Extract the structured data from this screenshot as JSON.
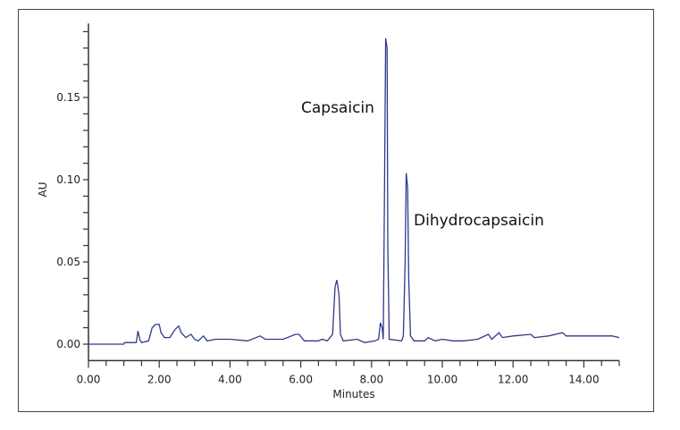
{
  "chart_data": {
    "type": "line",
    "title": "",
    "xlabel": "Minutes",
    "ylabel": "AU",
    "xlim": [
      0,
      15
    ],
    "ylim": [
      -0.01,
      0.195
    ],
    "x_ticks": [
      "0.00",
      "2.00",
      "4.00",
      "6.00",
      "8.00",
      "10.00",
      "12.00",
      "14.00"
    ],
    "y_ticks": [
      "0.00",
      "0.05",
      "0.10",
      "0.15"
    ],
    "grid": false,
    "line_color": "#2e3a8a",
    "annotations": [
      {
        "text": "Capsaicin",
        "x": 8.41,
        "y": 0.186
      },
      {
        "text": "Dihydrocapsaicin",
        "x": 8.99,
        "y": 0.104
      }
    ],
    "series": [
      {
        "x": [
          0,
          1.0,
          1.02,
          1.35,
          1.4,
          1.45,
          1.5,
          1.7,
          1.8,
          1.9,
          2.0,
          2.05,
          2.15,
          2.3,
          2.45,
          2.55,
          2.62,
          2.75,
          2.9,
          3.0,
          3.1,
          3.25,
          3.35,
          3.6,
          4.0,
          4.5,
          4.85,
          5.0,
          5.5,
          5.85,
          5.95,
          6.1,
          6.5,
          6.6,
          6.75,
          6.9,
          6.97,
          7.02,
          7.08,
          7.12,
          7.2,
          7.6,
          7.8,
          8.1,
          8.2,
          8.25,
          8.3,
          8.33,
          8.36,
          8.4,
          8.44,
          8.46,
          8.5,
          8.85,
          8.9,
          8.95,
          8.98,
          9.02,
          9.05,
          9.1,
          9.2,
          9.5,
          9.6,
          9.8,
          10.0,
          10.3,
          10.6,
          11.0,
          11.3,
          11.4,
          11.6,
          11.7,
          12.0,
          12.5,
          12.6,
          13.0,
          13.4,
          13.5,
          14.0,
          14.5,
          14.8,
          15.0
        ],
        "y": [
          0,
          0,
          0.001,
          0.001,
          0.008,
          0.003,
          0.001,
          0.002,
          0.01,
          0.012,
          0.012,
          0.007,
          0.004,
          0.004,
          0.009,
          0.011,
          0.007,
          0.004,
          0.006,
          0.003,
          0.002,
          0.005,
          0.002,
          0.003,
          0.003,
          0.002,
          0.005,
          0.003,
          0.003,
          0.006,
          0.006,
          0.002,
          0.002,
          0.003,
          0.002,
          0.006,
          0.035,
          0.039,
          0.03,
          0.006,
          0.002,
          0.003,
          0.001,
          0.002,
          0.003,
          0.013,
          0.01,
          0.003,
          0.08,
          0.186,
          0.18,
          0.06,
          0.003,
          0.002,
          0.005,
          0.05,
          0.104,
          0.095,
          0.04,
          0.005,
          0.002,
          0.002,
          0.004,
          0.002,
          0.003,
          0.002,
          0.002,
          0.003,
          0.006,
          0.003,
          0.007,
          0.004,
          0.005,
          0.006,
          0.004,
          0.005,
          0.007,
          0.005,
          0.005,
          0.005,
          0.005,
          0.004
        ]
      }
    ]
  }
}
